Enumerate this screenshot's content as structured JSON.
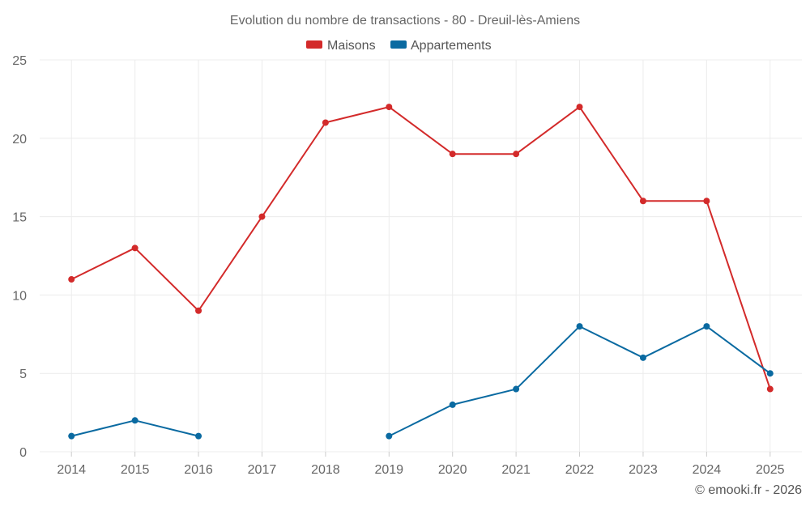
{
  "chart_data": {
    "type": "line",
    "title": "Evolution du nombre de transactions - 80 - Dreuil-lès-Amiens",
    "categories": [
      "2014",
      "2015",
      "2016",
      "2017",
      "2018",
      "2019",
      "2020",
      "2021",
      "2022",
      "2023",
      "2024",
      "2025"
    ],
    "series": [
      {
        "name": "Maisons",
        "color": "#d32a2a",
        "values": [
          11,
          13,
          9,
          15,
          21,
          22,
          19,
          19,
          22,
          16,
          16,
          4
        ]
      },
      {
        "name": "Appartements",
        "color": "#0a6aa1",
        "values": [
          1,
          2,
          1,
          null,
          null,
          1,
          3,
          4,
          8,
          6,
          8,
          5
        ]
      }
    ],
    "ylim": [
      0,
      25
    ],
    "yticks": [
      0,
      5,
      10,
      15,
      20,
      25
    ],
    "xlabel": "",
    "ylabel": "",
    "legend_position": "top-center",
    "grid": true
  },
  "credit": "© emooki.fr - 2026"
}
